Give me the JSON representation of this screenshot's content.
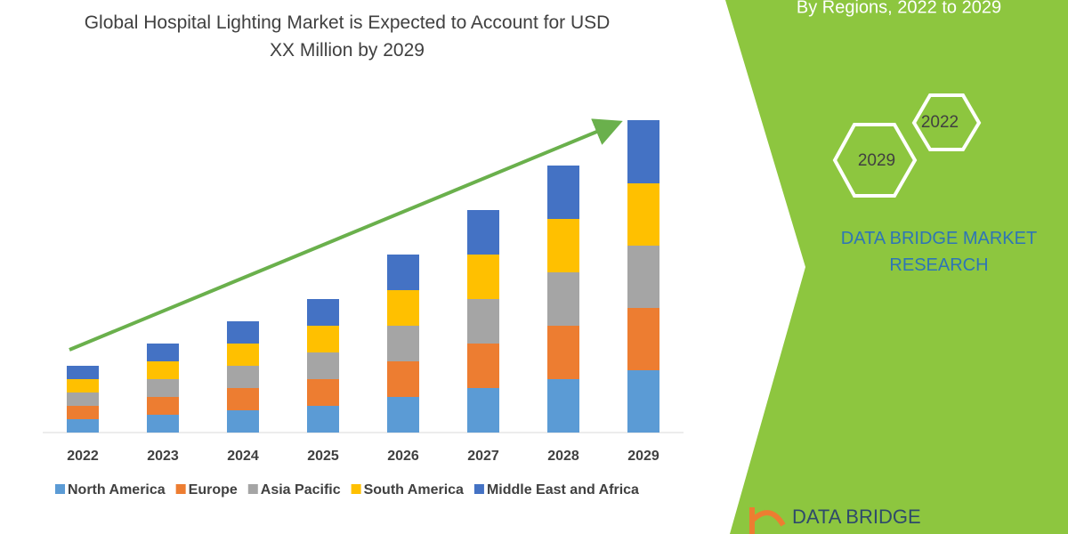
{
  "chart_data": {
    "type": "stacked_bar",
    "title": "Global Hospital Lighting Market is Expected to Account for USD XX Million by 2029",
    "categories": [
      "2022",
      "2023",
      "2024",
      "2025",
      "2026",
      "2027",
      "2028",
      "2029"
    ],
    "series": [
      {
        "name": "North America",
        "color": "#5b9bd5",
        "values": [
          15,
          20,
          25,
          30,
          40,
          50,
          60,
          70
        ]
      },
      {
        "name": "Europe",
        "color": "#ed7d31",
        "values": [
          15,
          20,
          25,
          30,
          40,
          50,
          60,
          70
        ]
      },
      {
        "name": "Asia Pacific",
        "color": "#a5a5a5",
        "values": [
          15,
          20,
          25,
          30,
          40,
          50,
          60,
          70
        ]
      },
      {
        "name": "South America",
        "color": "#ffc000",
        "values": [
          15,
          20,
          25,
          30,
          40,
          50,
          60,
          70
        ]
      },
      {
        "name": "Middle East and Africa",
        "color": "#4472c4",
        "values": [
          15,
          20,
          25,
          30,
          40,
          50,
          60,
          71
        ]
      }
    ],
    "ylim": [
      0,
      360
    ],
    "legend": "bottom"
  },
  "sidebar": {
    "subtitle": "By Regions, 2022 to 2029",
    "hexagons": [
      "2022",
      "2029"
    ],
    "brand": "DATA BRIDGE MARKET RESEARCH",
    "logo": "DATA BRIDGE"
  }
}
